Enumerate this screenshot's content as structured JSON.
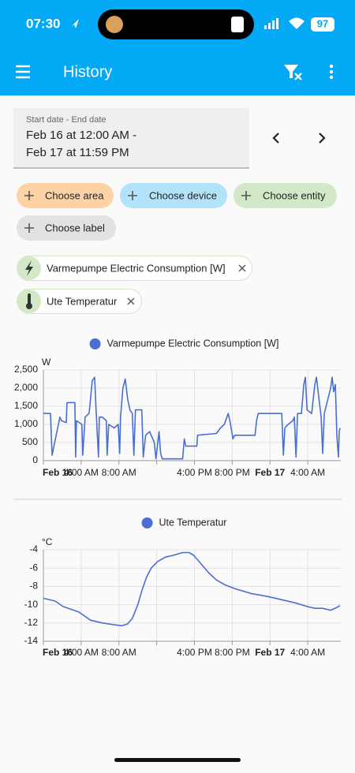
{
  "status_bar": {
    "time": "07:30",
    "battery": "97"
  },
  "header": {
    "title": "History"
  },
  "date_picker": {
    "label": "Start date - End date",
    "start": "Feb 16 at 12:00 AM -",
    "end": "Feb 17 at 11:59 PM"
  },
  "chips": [
    "Choose area",
    "Choose device",
    "Choose entity",
    "Choose label"
  ],
  "entities": [
    "Varmepumpe Electric Consumption [W]",
    "Ute Temperatur"
  ],
  "chart_data": [
    {
      "type": "line",
      "y_label": "W",
      "x": [
        0,
        0.75,
        0.92,
        1.75,
        1.92,
        2.42,
        2.5,
        3.33,
        3.42,
        3.5,
        4.08,
        4.17,
        4.42,
        4.83,
        4.92,
        5.17,
        5.42,
        5.58,
        5.83,
        5.92,
        6.25,
        6.67,
        6.75,
        6.92,
        7.5,
        7.92,
        8.08,
        8.17,
        8.42,
        8.67,
        8.92,
        9.17,
        9.42,
        9.58,
        9.75,
        10.42,
        10.58,
        10.83,
        11.25,
        11.75,
        11.92,
        12.25,
        12.42,
        12.58,
        14.75,
        14.92,
        15.08,
        16.25,
        16.33,
        18.33,
        18.75,
        19.17,
        19.58,
        19.75,
        20.08,
        20.25,
        22.42,
        22.58,
        22.75,
        25.25,
        25.42,
        25.58,
        25.92,
        26.42,
        26.58,
        26.75,
        26.92,
        27.33,
        27.58,
        27.75,
        27.92,
        28.42,
        28.75,
        28.92,
        29.42,
        29.58,
        29.75,
        30.42,
        30.58,
        30.75,
        30.92,
        31.08,
        31.25,
        31.33,
        31.42
      ],
      "series": [
        {
          "name": "Varmepumpe Electric Consumption [W]",
          "color": "#4a6fd1",
          "values": [
            1300,
            1300,
            150,
            1200,
            1100,
            1050,
            1600,
            1600,
            100,
            1100,
            1000,
            150,
            1200,
            1300,
            1500,
            2200,
            2300,
            1400,
            100,
            1200,
            1200,
            1100,
            150,
            1000,
            900,
            1000,
            200,
            1200,
            2000,
            2250,
            1700,
            1400,
            1300,
            150,
            1400,
            1400,
            100,
            700,
            800,
            500,
            50,
            800,
            200,
            50,
            50,
            600,
            400,
            400,
            700,
            750,
            900,
            1000,
            1300,
            1100,
            600,
            700,
            700,
            1100,
            1300,
            1300,
            150,
            900,
            1000,
            1100,
            1200,
            100,
            1300,
            1300,
            2100,
            2300,
            1400,
            1300,
            2100,
            2300,
            1200,
            200,
            1300,
            2000,
            2300,
            1900,
            2100,
            700,
            100,
            800,
            900
          ]
        }
      ],
      "xlim": [
        0,
        31.5
      ],
      "xticks": [
        {
          "value": 0,
          "label": "Feb 16"
        },
        {
          "value": 4,
          "label": "4:00 AM"
        },
        {
          "value": 8,
          "label": "8:00 AM"
        },
        {
          "value": 12,
          "label": null
        },
        {
          "value": 16,
          "label": "4:00 PM"
        },
        {
          "value": 20,
          "label": "8:00 PM"
        },
        {
          "value": 24,
          "label": "Feb 17"
        },
        {
          "value": 28,
          "label": "4:00 AM"
        }
      ],
      "ylim": [
        0,
        2500
      ],
      "yticks": [
        0,
        500,
        {
          "value": 1000,
          "label": "1,000"
        },
        {
          "value": 1500,
          "label": "1,500"
        },
        {
          "value": 2000,
          "label": "2,000"
        },
        {
          "value": 2500,
          "label": "2,500"
        }
      ],
      "grid": true
    },
    {
      "type": "line",
      "y_label": "°C",
      "x": [
        0,
        1.25,
        2.08,
        3.75,
        5,
        6.25,
        7.5,
        8.33,
        8.92,
        9.42,
        10,
        10.42,
        10.92,
        11.42,
        12.08,
        12.92,
        13.75,
        14.75,
        15.42,
        15.92,
        16.67,
        17.5,
        18.33,
        19.17,
        20.42,
        22.08,
        23.75,
        25.42,
        26.67,
        27.92,
        28.75,
        29.58,
        30.42,
        31.08,
        31.42
      ],
      "series": [
        {
          "name": "Ute Temperatur",
          "color": "#4a6fd1",
          "values": [
            -9.3,
            -9.6,
            -10.2,
            -10.8,
            -11.7,
            -12,
            -12.2,
            -12.3,
            -12.1,
            -11.5,
            -10,
            -8.5,
            -7,
            -6,
            -5.3,
            -4.8,
            -4.6,
            -4.3,
            -4.3,
            -4.6,
            -5.5,
            -6.5,
            -7.3,
            -7.8,
            -8.3,
            -8.8,
            -9.1,
            -9.5,
            -9.8,
            -10.2,
            -10.4,
            -10.4,
            -10.6,
            -10.3,
            -10.1
          ]
        }
      ],
      "xlim": [
        0,
        31.5
      ],
      "xticks": [
        {
          "value": 0,
          "label": "Feb 16"
        },
        {
          "value": 4,
          "label": "4:00 AM"
        },
        {
          "value": 8,
          "label": "8:00 AM"
        },
        {
          "value": 12,
          "label": null
        },
        {
          "value": 16,
          "label": "4:00 PM"
        },
        {
          "value": 20,
          "label": "8:00 PM"
        },
        {
          "value": 24,
          "label": "Feb 17"
        },
        {
          "value": 28,
          "label": "4:00 AM"
        }
      ],
      "ylim": [
        -14,
        -4
      ],
      "yticks": [
        -14,
        -12,
        -10,
        -8,
        -6,
        -4
      ],
      "grid": true
    }
  ]
}
